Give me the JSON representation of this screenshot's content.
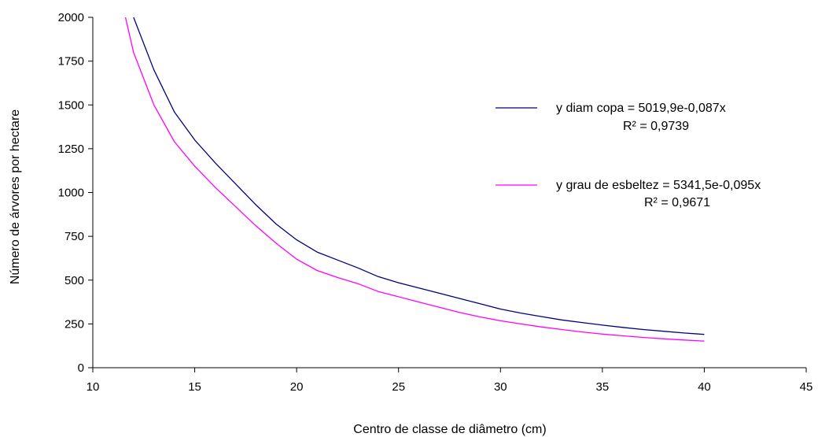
{
  "chart_data": {
    "type": "line",
    "title": "",
    "xlabel": "Centro de classe de diâmetro (cm)",
    "ylabel": "Número de árvores por hectare",
    "xlim": [
      10,
      45
    ],
    "ylim": [
      0,
      2000
    ],
    "xticks": [
      10,
      15,
      20,
      25,
      30,
      35,
      40,
      45
    ],
    "yticks": [
      0,
      250,
      500,
      750,
      1000,
      1250,
      1500,
      1750,
      2000
    ],
    "xtick_labels": [
      "10",
      "15",
      "20",
      "25",
      "30",
      "35",
      "40",
      "45"
    ],
    "ytick_labels": [
      "0",
      "250",
      "500",
      "750",
      "1000",
      "1250",
      "1500",
      "1750",
      "2000"
    ],
    "grid": false,
    "legend_position": "right",
    "series": [
      {
        "name": "y diam copa = 5019,9e-0,087x",
        "r2": "R² = 0,9739",
        "color": "#000080",
        "x": [
          12,
          13,
          14,
          15,
          16,
          17,
          18,
          19,
          20,
          21,
          22,
          23,
          24,
          25,
          26,
          27,
          28,
          29,
          30,
          31,
          32,
          33,
          34,
          35,
          36,
          37,
          38,
          39,
          40
        ],
        "y": [
          2000,
          1700,
          1460,
          1300,
          1170,
          1050,
          930,
          820,
          730,
          660,
          615,
          570,
          520,
          485,
          455,
          425,
          395,
          365,
          335,
          312,
          292,
          273,
          258,
          243,
          230,
          218,
          208,
          198,
          190
        ]
      },
      {
        "name": "y grau de esbeltez = 5341,5e-0,095x",
        "r2": "R² = 0,9671",
        "color": "#ff00ff",
        "x": [
          11.6,
          12,
          13,
          14,
          15,
          16,
          17,
          18,
          19,
          20,
          21,
          22,
          23,
          24,
          25,
          26,
          27,
          28,
          29,
          30,
          31,
          32,
          33,
          34,
          35,
          36,
          37,
          38,
          39,
          40
        ],
        "y": [
          2000,
          1800,
          1500,
          1290,
          1150,
          1030,
          920,
          810,
          710,
          620,
          555,
          515,
          480,
          435,
          405,
          375,
          345,
          315,
          290,
          268,
          250,
          233,
          218,
          204,
          192,
          182,
          173,
          165,
          158,
          152
        ]
      }
    ]
  }
}
